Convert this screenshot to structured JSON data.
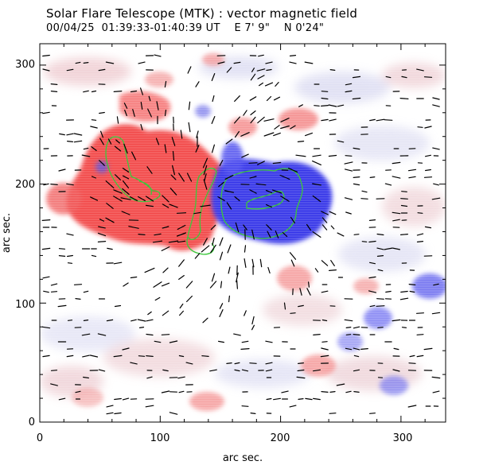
{
  "header": {
    "title": "Solar Flare Telescope (MTK) : vector magnetic field",
    "date": "00/04/25",
    "time_range": "01:39:33-01:40:39 UT",
    "position_ew": "E 7' 9\"",
    "position_ns": "N 0'24\""
  },
  "chart_data": {
    "type": "vector magnetogram",
    "xlabel": "arc sec.",
    "ylabel": "arc sec.",
    "xlim": [
      0,
      337
    ],
    "ylim": [
      0,
      318
    ],
    "x_ticks": [
      "0",
      "100",
      "200",
      "300"
    ],
    "y_ticks": [
      "0",
      "100",
      "200",
      "300"
    ],
    "colors": {
      "positive": "#f04646",
      "negative": "#3232e6",
      "contour": "#3cc83c",
      "arrow": "#000000"
    }
  }
}
